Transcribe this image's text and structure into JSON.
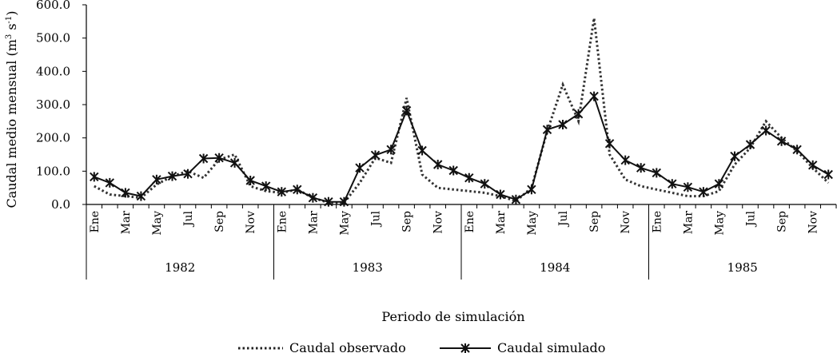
{
  "chart_data": {
    "type": "line",
    "ylabel": "Caudal medio mensual (m",
    "ylabel_sup1": "3",
    "ylabel_mid": " s",
    "ylabel_sup2": "-1",
    "ylabel_end": ")",
    "xlabel": "Periodo de simulación",
    "ylim": [
      0,
      600
    ],
    "y_ticks": [
      "0.0",
      "100.0",
      "200.0",
      "300.0",
      "400.0",
      "500.0",
      "600.0"
    ],
    "month_labels": [
      "Ene",
      "Mar",
      "May",
      "Jul",
      "Sep",
      "Nov"
    ],
    "years": [
      "1982",
      "1983",
      "1984",
      "1985"
    ],
    "grid": false,
    "legend_position": "bottom",
    "series": [
      {
        "name": "Caudal observado",
        "style": "dotted",
        "values": [
          55,
          30,
          25,
          20,
          60,
          85,
          100,
          80,
          135,
          150,
          55,
          40,
          35,
          45,
          20,
          5,
          5,
          65,
          140,
          125,
          320,
          90,
          50,
          45,
          40,
          35,
          25,
          10,
          50,
          220,
          360,
          250,
          560,
          150,
          75,
          55,
          45,
          35,
          25,
          25,
          40,
          120,
          170,
          250,
          200,
          160,
          110,
          65
        ]
      },
      {
        "name": "Caudal simulado",
        "style": "solid-star",
        "values": [
          83,
          65,
          35,
          25,
          75,
          85,
          92,
          138,
          140,
          125,
          72,
          55,
          38,
          45,
          20,
          8,
          8,
          110,
          148,
          165,
          282,
          162,
          120,
          102,
          80,
          62,
          30,
          15,
          45,
          225,
          240,
          272,
          325,
          183,
          133,
          110,
          95,
          62,
          52,
          38,
          62,
          145,
          180,
          222,
          190,
          165,
          118,
          90
        ]
      }
    ]
  }
}
